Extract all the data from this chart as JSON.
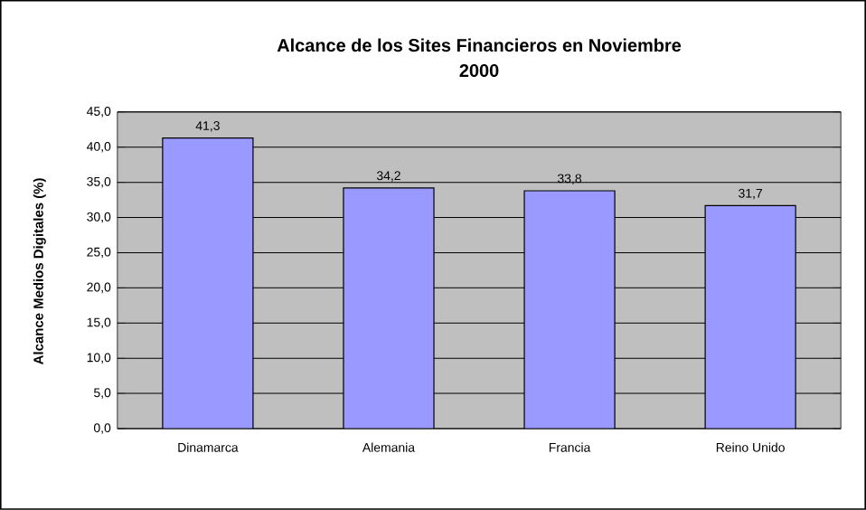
{
  "chart_data": {
    "type": "bar",
    "title": "Alcance de los Sites Financieros en Noviembre 2000",
    "ylabel": "Alcance Medios Digitales (%)",
    "categories": [
      "Dinamarca",
      "Alemania",
      "Francia",
      "Reino Unido"
    ],
    "values": [
      41.3,
      34.2,
      33.8,
      31.7
    ],
    "value_labels": [
      "41,3",
      "34,2",
      "33,8",
      "31,7"
    ],
    "color": "#9999ff",
    "ylim": [
      0,
      45
    ],
    "yticks": [
      {
        "value": 0,
        "label": "0,0"
      },
      {
        "value": 5,
        "label": "5,0"
      },
      {
        "value": 10,
        "label": "10,0"
      },
      {
        "value": 15,
        "label": "15,0"
      },
      {
        "value": 20,
        "label": "20,0"
      },
      {
        "value": 25,
        "label": "25,0"
      },
      {
        "value": 30,
        "label": "30,0"
      },
      {
        "value": 35,
        "label": "35,0"
      },
      {
        "value": 40,
        "label": "40,0"
      },
      {
        "value": 45,
        "label": "45,0"
      }
    ],
    "grid": "y"
  }
}
